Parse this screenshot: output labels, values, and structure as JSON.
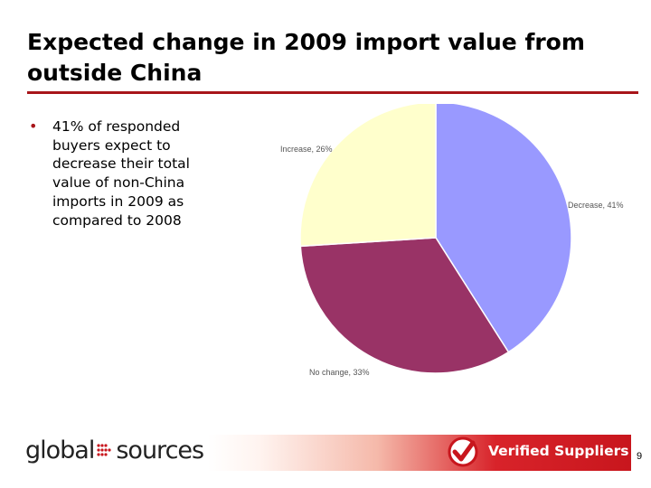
{
  "slide": {
    "title": "Expected change in 2009 import value from outside China",
    "bullets": [
      {
        "text": "41% of responded buyers expect to decrease their total value of non-China imports in 2009 as compared to 2008"
      }
    ],
    "bullet_symbol": "•",
    "page_number": "9"
  },
  "chart_data": {
    "type": "pie",
    "title": "",
    "slices": [
      {
        "label": "Decrease",
        "value": 41,
        "label_text": "Decrease, 41%",
        "color": "#9999ff"
      },
      {
        "label": "No change",
        "value": 33,
        "label_text": "No change, 33%",
        "color": "#993366"
      },
      {
        "label": "Increase",
        "value": 26,
        "label_text": "Increase, 26%",
        "color": "#ffffcc"
      }
    ],
    "start_angle_deg": 0,
    "direction": "clockwise",
    "legend": "none"
  },
  "footer": {
    "logo_text_left": "global",
    "logo_text_right": "sources",
    "banner_label": "Verified Suppliers"
  },
  "colors": {
    "accent": "#a8151a",
    "banner_red": "#c8161d"
  }
}
